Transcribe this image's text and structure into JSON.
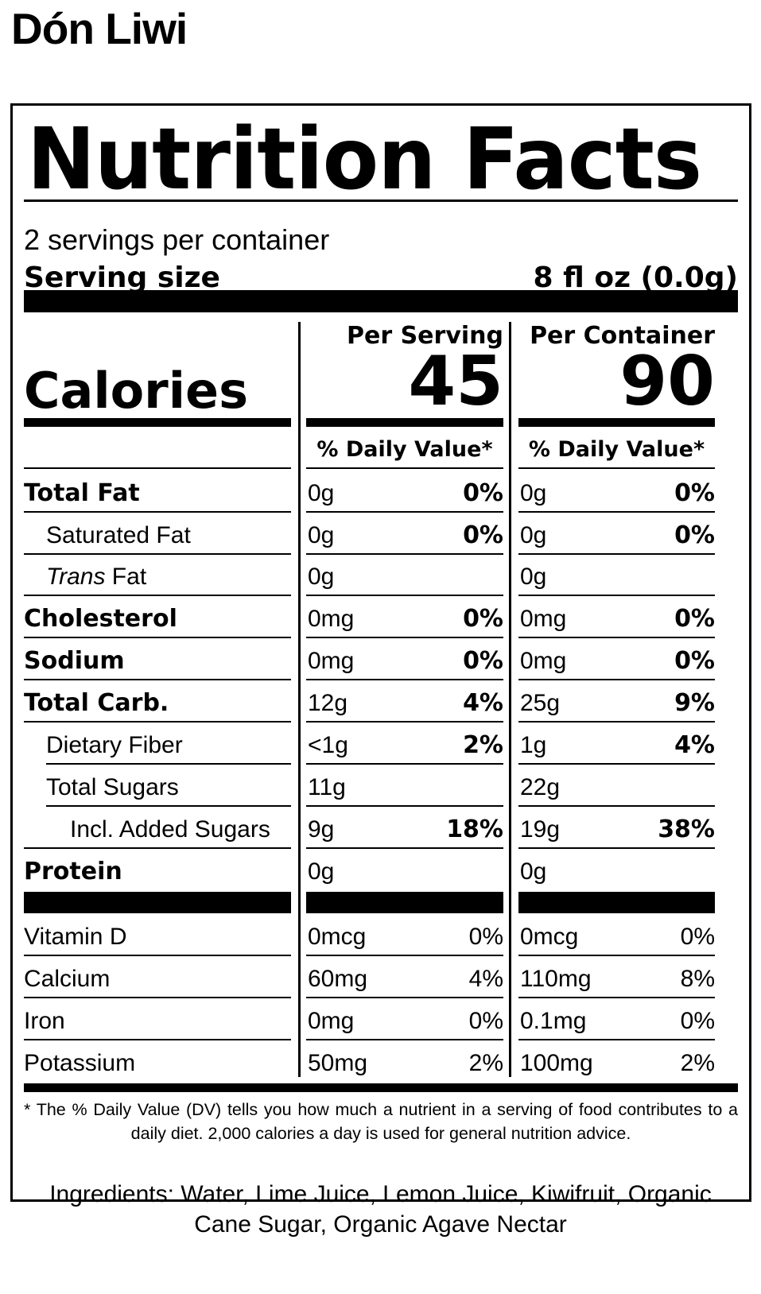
{
  "brand": "Dón Liwi",
  "title": "Nutrition Facts",
  "servings_per_container": "2 servings per container",
  "serving_size_label": "Serving size",
  "serving_size_value": "8 fl oz (0.0g)",
  "columns": {
    "per_serving": "Per Serving",
    "per_container": "Per Container",
    "daily_value": "% Daily Value*"
  },
  "calories": {
    "label": "Calories",
    "per_serving": "45",
    "per_container": "90"
  },
  "nutrients": [
    {
      "label": "Total Fat",
      "serving_amt": "0g",
      "serving_dv": "0%",
      "container_amt": "0g",
      "container_dv": "0%"
    },
    {
      "label": "Saturated Fat",
      "serving_amt": "0g",
      "serving_dv": "0%",
      "container_amt": "0g",
      "container_dv": "0%"
    },
    {
      "label_italic": "Trans",
      "label": " Fat",
      "serving_amt": "0g",
      "serving_dv": "",
      "container_amt": "0g",
      "container_dv": ""
    },
    {
      "label": "Cholesterol",
      "serving_amt": "0mg",
      "serving_dv": "0%",
      "container_amt": "0mg",
      "container_dv": "0%"
    },
    {
      "label": "Sodium",
      "serving_amt": "0mg",
      "serving_dv": "0%",
      "container_amt": "0mg",
      "container_dv": "0%"
    },
    {
      "label": "Total Carb.",
      "serving_amt": "12g",
      "serving_dv": "4%",
      "container_amt": "25g",
      "container_dv": "9%"
    },
    {
      "label": "Dietary Fiber",
      "serving_amt": "<1g",
      "serving_dv": "2%",
      "container_amt": "1g",
      "container_dv": "4%"
    },
    {
      "label": "Total Sugars",
      "serving_amt": "11g",
      "serving_dv": "",
      "container_amt": "22g",
      "container_dv": ""
    },
    {
      "label": "Incl. Added Sugars",
      "serving_amt": "9g",
      "serving_dv": "18%",
      "container_amt": "19g",
      "container_dv": "38%"
    },
    {
      "label": "Protein",
      "serving_amt": "0g",
      "serving_dv": "",
      "container_amt": "0g",
      "container_dv": ""
    }
  ],
  "vitamins": [
    {
      "label": "Vitamin D",
      "serving_amt": "0mcg",
      "serving_dv": "0%",
      "container_amt": "0mcg",
      "container_dv": "0%"
    },
    {
      "label": "Calcium",
      "serving_amt": "60mg",
      "serving_dv": "4%",
      "container_amt": "110mg",
      "container_dv": "8%"
    },
    {
      "label": "Iron",
      "serving_amt": "0mg",
      "serving_dv": "0%",
      "container_amt": "0.1mg",
      "container_dv": "0%"
    },
    {
      "label": "Potassium",
      "serving_amt": "50mg",
      "serving_dv": "2%",
      "container_amt": "100mg",
      "container_dv": "2%"
    }
  ],
  "footnote": "* The % Daily Value (DV) tells you how much a nutrient in a serving of food contributes to a daily diet. 2,000 calories a day is used for general nutrition advice.",
  "ingredients": "Ingredients: Water, Lime Juice, Lemon Juice, Kiwifruit, Organic Cane Sugar, Organic Agave Nectar"
}
